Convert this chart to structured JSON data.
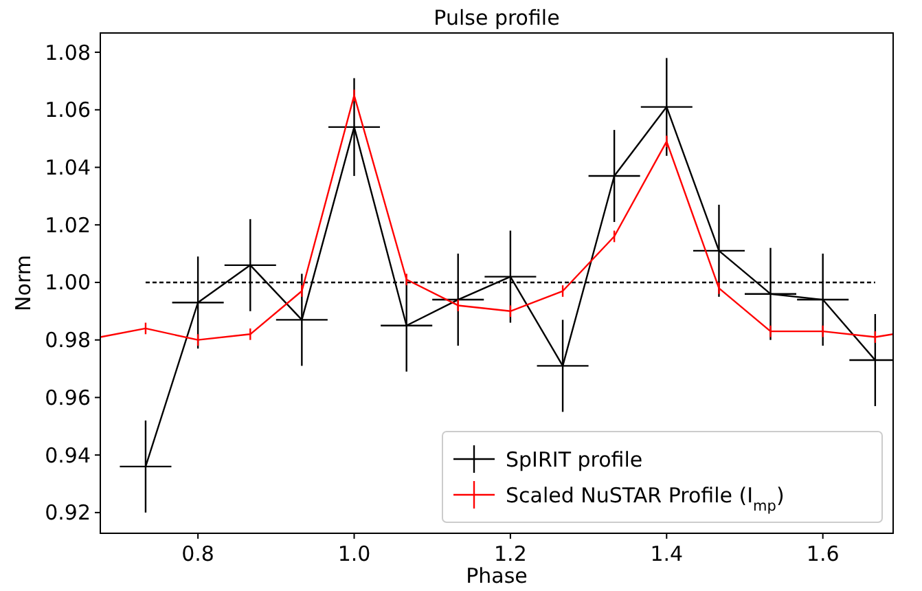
{
  "chart_data": {
    "type": "line",
    "title": "Pulse profile",
    "xlabel": "Phase",
    "ylabel": "Norm",
    "xlim": [
      0.675,
      1.69
    ],
    "xticks": [
      {
        "value": 0.8,
        "label": "0.8"
      },
      {
        "value": 1.0,
        "label": "1.0"
      },
      {
        "value": 1.2,
        "label": "1.2"
      },
      {
        "value": 1.4,
        "label": "1.4"
      },
      {
        "value": 1.6,
        "label": "1.6"
      }
    ],
    "ylim": [
      0.9128,
      1.0867
    ],
    "yticks": [
      {
        "value": 0.92,
        "label": "0.92"
      },
      {
        "value": 0.94,
        "label": "0.94"
      },
      {
        "value": 0.96,
        "label": "0.96"
      },
      {
        "value": 0.98,
        "label": "0.98"
      },
      {
        "value": 1.0,
        "label": "1.00"
      },
      {
        "value": 1.02,
        "label": "1.02"
      },
      {
        "value": 1.04,
        "label": "1.04"
      },
      {
        "value": 1.06,
        "label": "1.06"
      },
      {
        "value": 1.08,
        "label": "1.08"
      }
    ],
    "grid": false,
    "legend": "bottom right",
    "marker": "none",
    "series": [
      {
        "line_style": "dashed",
        "color": "#000000",
        "x": [
          0.733,
          1.667
        ],
        "values": [
          1.0,
          1.0
        ]
      },
      {
        "name": "SpIRIT profile",
        "color": "#000000",
        "x": [
          0.733,
          0.8,
          0.867,
          0.933,
          1.0,
          1.067,
          1.133,
          1.2,
          1.267,
          1.333,
          1.4,
          1.467,
          1.533,
          1.6,
          1.667
        ],
        "values": [
          0.936,
          0.993,
          1.006,
          0.987,
          1.054,
          0.985,
          0.994,
          1.002,
          0.971,
          1.037,
          1.061,
          1.011,
          0.996,
          0.994,
          0.973
        ],
        "errors": [
          0.016,
          0.016,
          0.016,
          0.016,
          0.017,
          0.016,
          0.016,
          0.016,
          0.016,
          0.016,
          0.017,
          0.016,
          0.016,
          0.016,
          0.016
        ],
        "xerrors": [
          0.033,
          0.033,
          0.033,
          0.033,
          0.033,
          0.033,
          0.033,
          0.033,
          0.033,
          0.033,
          0.033,
          0.033,
          0.033,
          0.033,
          0.033
        ]
      },
      {
        "name": "Scaled NuSTAR Profile (I$_{mp}$)",
        "color": "#ff0000",
        "x": [
          0.675,
          0.733,
          0.8,
          0.867,
          0.933,
          1.0,
          1.067,
          1.133,
          1.2,
          1.267,
          1.333,
          1.4,
          1.467,
          1.533,
          1.6,
          1.667,
          1.69
        ],
        "values": [
          0.981,
          0.984,
          0.98,
          0.982,
          0.997,
          1.065,
          1.001,
          0.992,
          0.99,
          0.997,
          1.016,
          1.049,
          0.998,
          0.983,
          0.983,
          0.981,
          0.982
        ],
        "errors": [
          null,
          0.002,
          0.002,
          0.002,
          0.002,
          0.002,
          0.002,
          0.002,
          0.002,
          0.002,
          0.002,
          0.002,
          0.002,
          0.002,
          0.002,
          0.002,
          null
        ]
      }
    ]
  }
}
